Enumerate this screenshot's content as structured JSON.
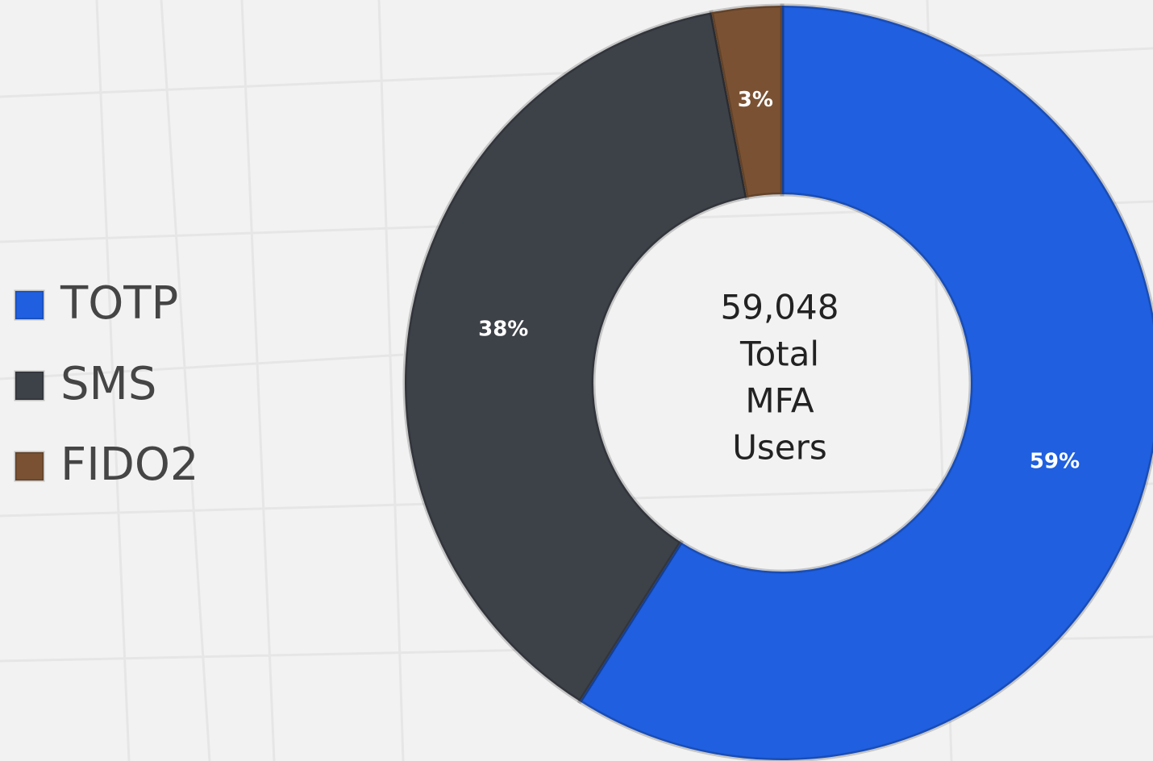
{
  "chart_data": {
    "type": "donut",
    "categories": [
      "TOTP",
      "SMS",
      "FIDO2"
    ],
    "values": [
      59,
      38,
      3
    ],
    "value_labels": [
      "59%",
      "38%",
      "3%"
    ],
    "colors": [
      "#1f5fe0",
      "#3d4148",
      "#7a5233"
    ],
    "center_text": [
      "59,048",
      "Total",
      "MFA",
      "Users"
    ],
    "legend": "left"
  }
}
